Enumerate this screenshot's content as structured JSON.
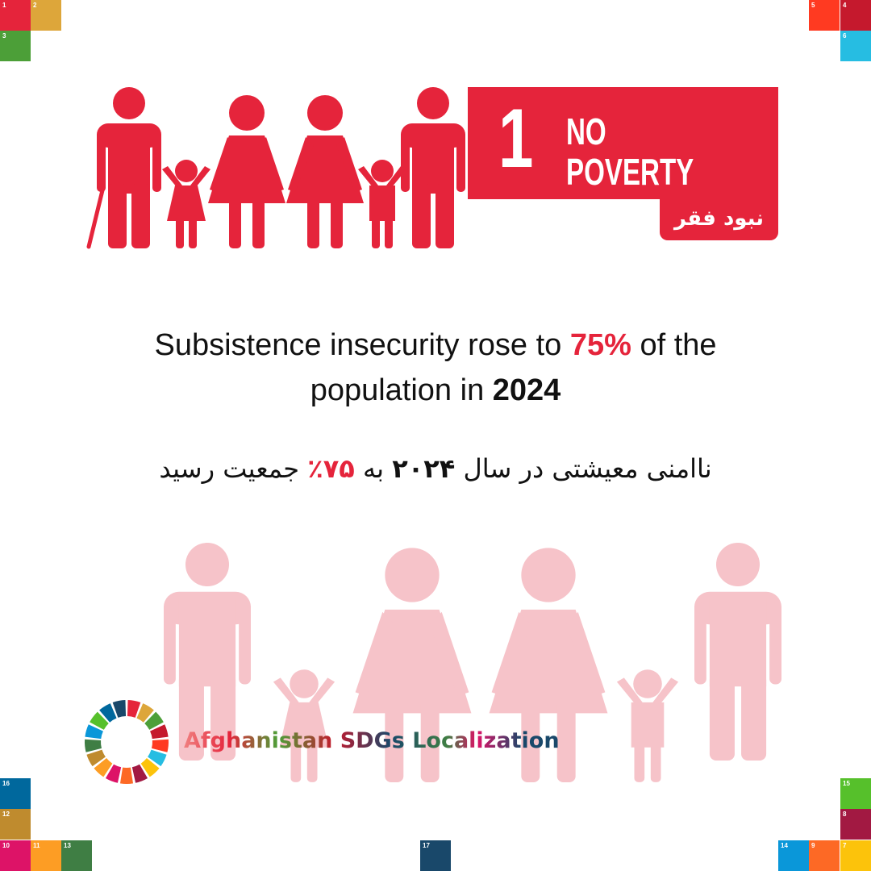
{
  "banner": {
    "number": "1",
    "title_line1": "NO",
    "title_line2": "POVERTY",
    "title_fa": "نبود فقر"
  },
  "statement_en": {
    "part1": "Subsistence insecurity rose to ",
    "percent": "75%",
    "part2": " of the population in ",
    "year": "2024"
  },
  "statement_fa": {
    "part1": "ناامنی معیشتی در سال ",
    "year": "۲۰۲۴",
    "part2": " به ",
    "percent": "۷۵٪",
    "part3": " جمعیت رسید"
  },
  "logo": {
    "text": "Afghanistan SDGs Localization"
  },
  "sdg_tiles": [
    1,
    2,
    3,
    5,
    4,
    6,
    16,
    12,
    10,
    11,
    13,
    17,
    15,
    8,
    14,
    9,
    7
  ]
}
